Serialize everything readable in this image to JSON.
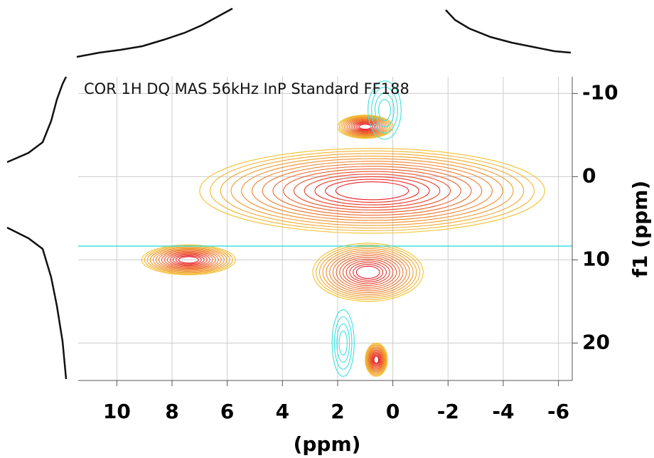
{
  "chart_data": {
    "type": "contour",
    "title": "COR 1H DQ MAS 56kHz InP Standard FF188",
    "x_label": "(ppm)",
    "y_label": "f1 (ppm)",
    "xlim": [
      11.4,
      -6.5
    ],
    "ylim": [
      -12,
      24.5
    ],
    "xticks": [
      10,
      8,
      6,
      4,
      2,
      0,
      -2,
      -4,
      -6
    ],
    "yticks": [
      -10,
      0,
      10,
      20
    ],
    "grid": true,
    "positive_colors": [
      "#f2c12e",
      "#e8202a"
    ],
    "negative_color": "#3fe0e0",
    "peaks": [
      {
        "x": 0.75,
        "y": 1.7,
        "rx": 6.25,
        "ry": 5.1,
        "sign": 1
      },
      {
        "x": 1.0,
        "y": -6.0,
        "rx": 1.0,
        "ry": 1.4,
        "sign": 1
      },
      {
        "x": 0.9,
        "y": 11.5,
        "rx": 2.0,
        "ry": 3.5,
        "sign": 1
      },
      {
        "x": 7.4,
        "y": 10.0,
        "rx": 1.7,
        "ry": 1.8,
        "sign": 1
      },
      {
        "x": 0.6,
        "y": 22.0,
        "rx": 0.4,
        "ry": 2.0,
        "sign": 1
      },
      {
        "x": 0.3,
        "y": -8.0,
        "rx": 0.6,
        "ry": 3.5,
        "sign": -1
      },
      {
        "x": 1.8,
        "y": 20.0,
        "rx": 0.4,
        "ry": 4.0,
        "sign": -1
      }
    ]
  }
}
